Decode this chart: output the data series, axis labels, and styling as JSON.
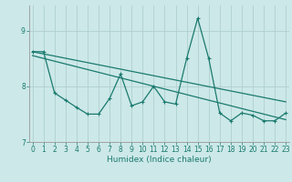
{
  "xlabel": "Humidex (Indice chaleur)",
  "bg_color": "#cce8e8",
  "line_color": "#1a7a6e",
  "grid_color": "#b0d0d0",
  "series": [
    {
      "x": [
        0,
        23
      ],
      "y": [
        8.62,
        7.72
      ],
      "marker": false,
      "lw": 0.9
    },
    {
      "x": [
        0,
        1,
        2,
        3,
        4,
        5,
        6,
        7,
        8,
        9,
        10,
        11,
        12,
        13,
        14,
        15,
        16,
        17,
        18,
        19,
        20,
        21,
        22,
        23
      ],
      "y": [
        8.55,
        8.5,
        8.45,
        8.4,
        8.35,
        8.3,
        8.25,
        8.2,
        8.15,
        8.1,
        8.05,
        8.0,
        7.95,
        7.9,
        7.85,
        7.8,
        7.75,
        7.7,
        7.65,
        7.6,
        7.55,
        7.5,
        7.45,
        7.4
      ],
      "marker": false,
      "lw": 0.9
    },
    {
      "x": [
        0,
        1,
        2,
        3,
        4,
        5,
        6,
        7,
        8,
        9,
        10,
        11,
        12,
        13,
        14,
        15,
        16,
        17,
        18,
        19,
        20,
        21,
        22,
        23
      ],
      "y": [
        8.62,
        8.62,
        7.88,
        7.75,
        7.62,
        7.5,
        7.5,
        7.78,
        8.22,
        7.65,
        7.72,
        8.0,
        7.72,
        7.68,
        8.5,
        9.22,
        8.5,
        7.52,
        7.38,
        7.52,
        7.48,
        7.38,
        7.38,
        7.52
      ],
      "marker": true,
      "lw": 0.9
    }
  ],
  "ylim": [
    7.0,
    9.45
  ],
  "xlim": [
    -0.3,
    23.3
  ],
  "yticks": [
    7,
    8,
    9
  ],
  "xticks": [
    0,
    1,
    2,
    3,
    4,
    5,
    6,
    7,
    8,
    9,
    10,
    11,
    12,
    13,
    14,
    15,
    16,
    17,
    18,
    19,
    20,
    21,
    22,
    23
  ],
  "tick_fontsize": 5.5,
  "xlabel_fontsize": 6.5
}
